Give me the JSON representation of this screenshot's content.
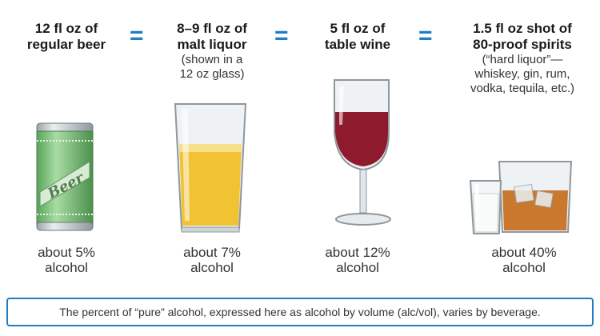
{
  "drinks": [
    {
      "title_lines": [
        "12 fl oz of",
        "regular beer"
      ],
      "note_lines": [],
      "pct_lines": [
        "about 5%",
        "alcohol"
      ],
      "icon": "beer-can-icon",
      "can_label": "Beer"
    },
    {
      "title_lines": [
        "8–9 fl oz of",
        "malt liquor"
      ],
      "note_lines": [
        "(shown in a",
        "12 oz glass)"
      ],
      "pct_lines": [
        "about 7%",
        "alcohol"
      ],
      "icon": "malt-liquor-glass-icon"
    },
    {
      "title_lines": [
        "5 fl oz of",
        "table wine"
      ],
      "note_lines": [],
      "pct_lines": [
        "about 12%",
        "alcohol"
      ],
      "icon": "wine-glass-icon"
    },
    {
      "title_lines": [
        "1.5 fl oz shot of",
        "80-proof spirits"
      ],
      "note_lines": [
        "(“hard liquor”—",
        "whiskey, gin, rum,",
        "vodka, tequila, etc.)"
      ],
      "pct_lines": [
        "about 40%",
        "alcohol"
      ],
      "icon": "spirits-glasses-icon"
    }
  ],
  "equals_sign": "=",
  "footer": "The percent of “pure” alcohol, expressed here as alcohol by volume (alc/vol), varies by beverage.",
  "colors": {
    "accent": "#1f7fc1",
    "beer_can": "#7cc47a",
    "malt_liquor": "#f1c232",
    "wine": "#8e1a2e",
    "whiskey": "#c9782d"
  }
}
